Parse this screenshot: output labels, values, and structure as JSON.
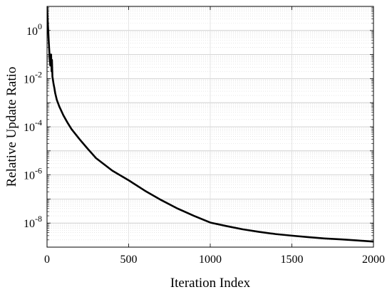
{
  "chart_data": {
    "type": "line",
    "title": "",
    "xlabel": "Iteration Index",
    "ylabel": "Relative Update Ratio",
    "xlim": [
      0,
      2000
    ],
    "ylim": [
      1e-09,
      10
    ],
    "yscale": "log",
    "grid": true,
    "minor_grid": true,
    "legend": "none",
    "x_ticks": [
      {
        "value": 0,
        "label": "0"
      },
      {
        "value": 500,
        "label": "500"
      },
      {
        "value": 1000,
        "label": "1000"
      },
      {
        "value": 1500,
        "label": "1500"
      },
      {
        "value": 2000,
        "label": "2000"
      }
    ],
    "y_ticks": [
      {
        "value": 1e-08,
        "base": "10",
        "exp": "-8"
      },
      {
        "value": 1e-06,
        "base": "10",
        "exp": "-6"
      },
      {
        "value": 0.0001,
        "base": "10",
        "exp": "-4"
      },
      {
        "value": 0.01,
        "base": "10",
        "exp": "-2"
      },
      {
        "value": 1,
        "base": "10",
        "exp": "0"
      }
    ],
    "series": [
      {
        "color": "#000000",
        "x": [
          0,
          5,
          10,
          15,
          20,
          25,
          28,
          30,
          33,
          35,
          40,
          45,
          50,
          60,
          75,
          100,
          125,
          150,
          200,
          250,
          300,
          400,
          500,
          600,
          700,
          800,
          900,
          1000,
          1100,
          1200,
          1300,
          1400,
          1500,
          1600,
          1700,
          1800,
          1900,
          2000
        ],
        "y": [
          10,
          2.0,
          0.4,
          0.1,
          0.035,
          0.1,
          0.02,
          0.06,
          0.012,
          0.01,
          0.006,
          0.004,
          0.0025,
          0.0013,
          0.0007,
          0.0003,
          0.00015,
          8e-05,
          3e-05,
          1.2e-05,
          5e-06,
          1.5e-06,
          6e-07,
          2.2e-07,
          9e-08,
          4e-08,
          2e-08,
          1.05e-08,
          7.5e-09,
          5.5e-09,
          4.3e-09,
          3.5e-09,
          3e-09,
          2.6e-09,
          2.3e-09,
          2.1e-09,
          1.9e-09,
          1.7e-09
        ]
      }
    ]
  }
}
